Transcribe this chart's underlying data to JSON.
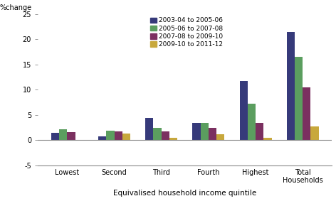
{
  "categories": [
    "Lowest",
    "Second",
    "Third",
    "Fourth",
    "Highest",
    "Total\nHouseholds"
  ],
  "series": {
    "2003-04 to 2005-06": [
      1.4,
      0.7,
      4.4,
      3.4,
      11.8,
      21.5
    ],
    "2005-06 to 2007-08": [
      2.1,
      1.9,
      2.4,
      3.4,
      7.2,
      16.5
    ],
    "2007-08 to 2009-10": [
      1.6,
      1.7,
      1.7,
      2.4,
      3.4,
      10.5
    ],
    "2009-10 to 2011-12": [
      -0.1,
      1.3,
      0.4,
      1.1,
      0.5,
      2.7
    ]
  },
  "colors": {
    "2003-04 to 2005-06": "#363a7a",
    "2005-06 to 2007-08": "#5b9e5f",
    "2007-08 to 2009-10": "#7b3060",
    "2009-10 to 2011-12": "#c8a83c"
  },
  "ylabel": "%change",
  "xlabel": "Equivalised household income quintile",
  "ylim": [
    -5,
    25
  ],
  "yticks": [
    -5,
    0,
    5,
    10,
    15,
    20,
    25
  ],
  "background_color": "#ffffff",
  "bar_width": 0.17,
  "legend_labels": [
    "2003-04 to 2005-06",
    "2005-06 to 2007-08",
    "2007-08 to 2009-10",
    "2009-10 to 2011-12"
  ]
}
